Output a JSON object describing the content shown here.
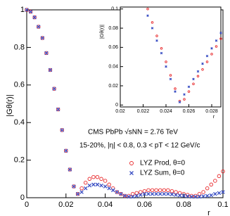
{
  "chart_data": [
    {
      "type": "scatter",
      "xlabel": "r",
      "ylabel": "|Gθ(r)|",
      "xlim": [
        0,
        0.1
      ],
      "ylim": [
        0,
        1
      ],
      "xticks": [
        0,
        0.02,
        0.04,
        0.06,
        0.08,
        0.1
      ],
      "yticks": [
        0,
        0.2,
        0.4,
        0.6,
        0.8,
        1
      ],
      "grid": false,
      "legend": "lower right",
      "annotations": [
        "CMS  PbPb  √sNN = 2.76 TeV",
        "15-20%,  |η| < 0.8,  0.3 < pT < 12 GeV/c"
      ],
      "x": [
        0,
        0.002,
        0.004,
        0.006,
        0.008,
        0.01,
        0.012,
        0.014,
        0.016,
        0.018,
        0.02,
        0.022,
        0.024,
        0.026,
        0.028,
        0.03,
        0.032,
        0.034,
        0.036,
        0.038,
        0.04,
        0.042,
        0.044,
        0.046,
        0.048,
        0.05,
        0.052,
        0.054,
        0.056,
        0.058,
        0.06,
        0.062,
        0.064,
        0.066,
        0.068,
        0.07,
        0.072,
        0.074,
        0.076,
        0.078,
        0.08,
        0.082,
        0.084,
        0.086,
        0.088,
        0.09,
        0.092,
        0.094,
        0.096,
        0.098,
        0.1
      ],
      "series": [
        {
          "name": "LYZ Prod, θ=0",
          "color": "#e8282b",
          "marker": "o",
          "values": [
            1,
            0.99,
            0.96,
            0.91,
            0.85,
            0.77,
            0.68,
            0.58,
            0.47,
            0.36,
            0.25,
            0.15,
            0.06,
            0.02,
            0.05,
            0.08,
            0.1,
            0.11,
            0.11,
            0.1,
            0.09,
            0.07,
            0.05,
            0.03,
            0.02,
            0.01,
            0.01,
            0.02,
            0.025,
            0.03,
            0.035,
            0.04,
            0.04,
            0.04,
            0.04,
            0.04,
            0.04,
            0.035,
            0.03,
            0.025,
            0.02,
            0.015,
            0.01,
            0.01,
            0.02,
            0.03,
            0.05,
            0.07,
            0.09,
            0.115,
            0.14
          ]
        },
        {
          "name": "LYZ Sum, θ=0",
          "color": "#3a4fc4",
          "marker": "x",
          "values": [
            1,
            0.99,
            0.96,
            0.91,
            0.85,
            0.77,
            0.68,
            0.58,
            0.47,
            0.36,
            0.25,
            0.15,
            0.06,
            0.02,
            0.03,
            0.05,
            0.065,
            0.07,
            0.07,
            0.065,
            0.06,
            0.05,
            0.04,
            0.03,
            0.02,
            0.01,
            0.005,
            0.005,
            0.01,
            0.015,
            0.02,
            0.02,
            0.02,
            0.02,
            0.02,
            0.02,
            0.02,
            0.018,
            0.015,
            0.012,
            0.01,
            0.008,
            0.005,
            0.005,
            0.005,
            0.008,
            0.01,
            0.013,
            0.02,
            0.025,
            0.03
          ]
        }
      ]
    },
    {
      "type": "scatter",
      "xlabel": "r",
      "ylabel": "|Gθ(r)|",
      "xlim": [
        0.02,
        0.0288
      ],
      "ylim": [
        -0.002,
        0.102
      ],
      "xticks": [
        0.02,
        0.022,
        0.024,
        0.026,
        0.028
      ],
      "yticks": [
        0,
        0.02,
        0.04,
        0.06,
        0.08,
        0.1
      ],
      "grid": false,
      "x": [
        0.0224,
        0.0228,
        0.0232,
        0.0236,
        0.024,
        0.0244,
        0.0248,
        0.0252,
        0.0256,
        0.026,
        0.0264,
        0.0268,
        0.0272,
        0.0276,
        0.028,
        0.0284,
        0.0288
      ],
      "series": [
        {
          "name": "LYZ Prod, θ=0",
          "color": "#e8282b",
          "marker": "o",
          "values": [
            0.1,
            0.086,
            0.072,
            0.059,
            0.045,
            0.031,
            0.017,
            0.004,
            0.006,
            0.014,
            0.022,
            0.03,
            0.037,
            0.045,
            0.053,
            0.061,
            0.069
          ]
        },
        {
          "name": "LYZ Sum, θ=0",
          "color": "#3a4fc4",
          "marker": "x",
          "values": [
            0.093,
            0.08,
            0.067,
            0.054,
            0.04,
            0.027,
            0.014,
            0.003,
            0.011,
            0.019,
            0.027,
            0.035,
            0.043,
            0.051,
            0.059,
            0.067,
            0.075
          ]
        }
      ]
    }
  ]
}
